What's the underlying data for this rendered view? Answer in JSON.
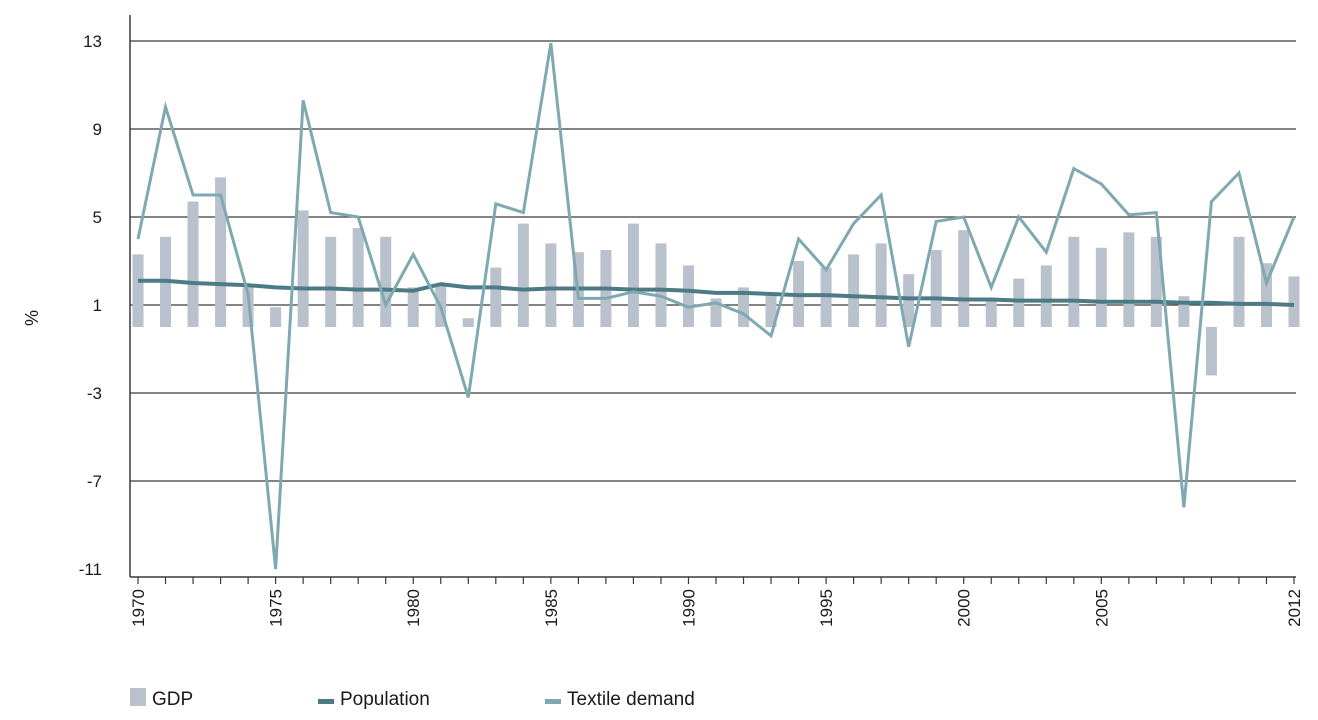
{
  "chart_data": {
    "type": "bar",
    "title": "",
    "ylabel": "%",
    "xlabel": "",
    "ylim": [
      -11,
      14
    ],
    "yticks": [
      13,
      9,
      5,
      1,
      -3,
      -7,
      -11
    ],
    "x": [
      1970,
      1971,
      1972,
      1973,
      1974,
      1975,
      1976,
      1977,
      1978,
      1979,
      1980,
      1981,
      1982,
      1983,
      1984,
      1985,
      1986,
      1987,
      1988,
      1989,
      1990,
      1991,
      1992,
      1993,
      1994,
      1995,
      1996,
      1997,
      1998,
      1999,
      2000,
      2001,
      2002,
      2003,
      2004,
      2005,
      2006,
      2007,
      2008,
      2009,
      2010,
      2011,
      2012
    ],
    "xtick_labels": [
      "1970",
      "1975",
      "1980",
      "1985",
      "1990",
      "1995",
      "2000",
      "2005",
      "2012"
    ],
    "grid": "horizontal",
    "legend_position": "bottom-left",
    "colors": {
      "gdp": "#b9c2cc",
      "population": "#4d7b85",
      "textile": "#7fa9b1",
      "grid": "#3a3a3a",
      "axis": "#3a3a3a"
    },
    "series": [
      {
        "name": "GDP",
        "type": "bar",
        "values": [
          3.3,
          4.1,
          5.7,
          6.8,
          1.8,
          0.9,
          5.3,
          4.1,
          4.5,
          4.1,
          1.8,
          1.9,
          0.4,
          2.7,
          4.7,
          3.8,
          3.4,
          3.5,
          4.7,
          3.8,
          2.8,
          1.3,
          1.8,
          1.5,
          3.0,
          2.7,
          3.3,
          3.8,
          2.4,
          3.5,
          4.4,
          1.2,
          2.2,
          2.8,
          4.1,
          3.6,
          4.3,
          4.1,
          1.4,
          -2.2,
          4.1,
          2.9,
          2.3
        ]
      },
      {
        "name": "Population",
        "type": "line",
        "values": [
          2.1,
          2.1,
          2.0,
          1.95,
          1.9,
          1.8,
          1.75,
          1.75,
          1.7,
          1.7,
          1.65,
          1.95,
          1.8,
          1.8,
          1.7,
          1.75,
          1.75,
          1.75,
          1.7,
          1.7,
          1.65,
          1.55,
          1.55,
          1.5,
          1.45,
          1.45,
          1.4,
          1.35,
          1.3,
          1.3,
          1.25,
          1.25,
          1.2,
          1.2,
          1.2,
          1.15,
          1.15,
          1.15,
          1.1,
          1.1,
          1.05,
          1.05,
          1.0
        ]
      },
      {
        "name": "Textile demand",
        "type": "line",
        "values": [
          4.0,
          10.0,
          6.0,
          6.0,
          1.5,
          -11.0,
          10.3,
          5.2,
          5.0,
          1.0,
          3.3,
          0.9,
          -3.2,
          5.6,
          5.2,
          12.9,
          1.3,
          1.3,
          1.6,
          1.4,
          0.9,
          1.1,
          0.6,
          -0.4,
          4.0,
          2.6,
          4.7,
          6.0,
          -0.9,
          4.8,
          5.0,
          1.8,
          5.0,
          3.4,
          7.2,
          6.5,
          5.1,
          5.2,
          -8.2,
          5.7,
          7.0,
          2.0,
          5.0
        ]
      }
    ]
  }
}
